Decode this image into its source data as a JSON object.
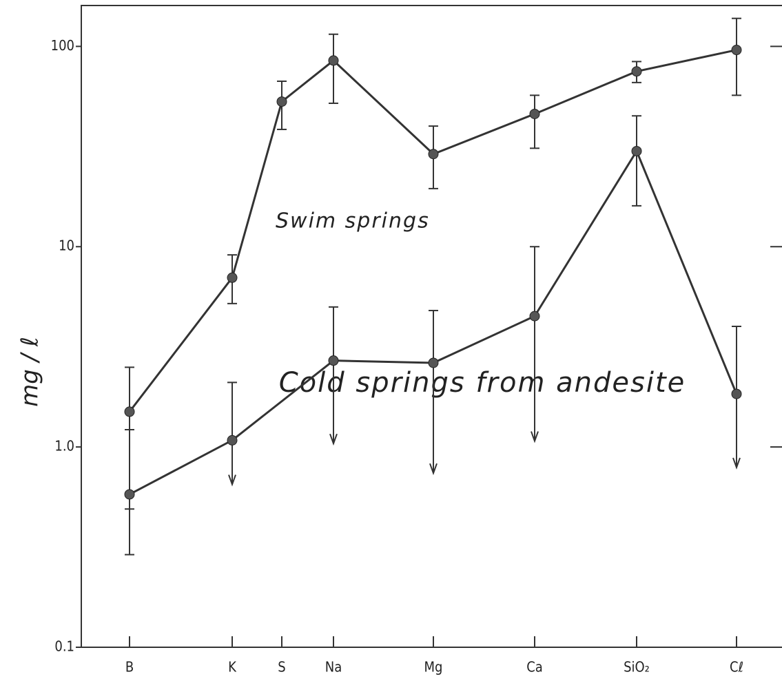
{
  "chart_data": {
    "type": "line",
    "y_label": "mg / ℓ",
    "categories": [
      "B",
      "K",
      "S",
      "Na",
      "Mg",
      "Ca",
      "SiO₂",
      "Cℓ"
    ],
    "log_y": true,
    "ylim": [
      0.1,
      160
    ],
    "yticks": [
      100,
      10,
      {
        "value": 1,
        "label": "1.0"
      },
      0.1
    ],
    "color": "#333333",
    "annotations": [
      "Swim springs",
      "Cold springs from andesite"
    ],
    "series": [
      {
        "name": "Swim springs",
        "color": "#333333",
        "values": [
          1.5,
          7.0,
          53,
          85,
          29,
          46,
          75,
          96
        ],
        "upper": [
          2.5,
          9.1,
          67,
          115,
          40,
          57,
          84,
          138
        ],
        "lower": [
          0.49,
          5.2,
          38.5,
          52,
          19.5,
          31,
          66,
          57
        ],
        "arrow": [
          false,
          false,
          false,
          false,
          false,
          false,
          false,
          false
        ]
      },
      {
        "name": "Cold springs from andesite",
        "color": "#333333",
        "values": [
          0.58,
          1.08,
          null,
          2.7,
          2.63,
          4.5,
          30,
          1.84
        ],
        "upper": [
          1.22,
          2.1,
          null,
          5.0,
          4.8,
          10,
          45,
          4.0
        ],
        "lower": [
          0.29,
          0.65,
          null,
          1.04,
          0.74,
          1.07,
          16,
          0.79
        ],
        "arrow": [
          false,
          true,
          false,
          true,
          true,
          true,
          false,
          true
        ]
      }
    ]
  }
}
